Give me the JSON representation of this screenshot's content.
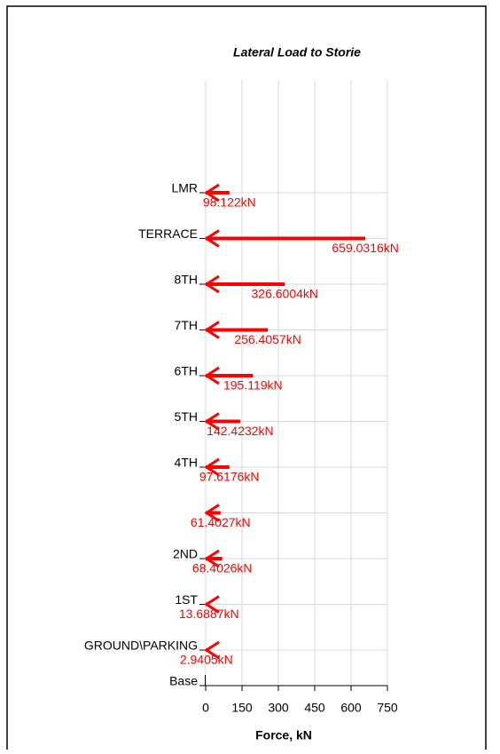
{
  "chart_data": {
    "type": "arrow",
    "title": "Lateral Load to Storie",
    "x_label": "Force, kN",
    "categories": [
      "LMR",
      "TERRACE",
      "8TH",
      "7TH",
      "6TH",
      "5TH",
      "4TH",
      null,
      "2ND",
      "1ST",
      "GROUND\\PARKING",
      "Base"
    ],
    "values": [
      98.122,
      659.0316,
      326.6004,
      256.4057,
      195.119,
      142.4232,
      97.6176,
      61.4027,
      68.4026,
      13.6887,
      2.9405,
      null
    ],
    "value_labels": [
      "98.122kN",
      "659.0316kN",
      "326.6004kN",
      "256.4057kN",
      "195.119kN",
      "142.4232kN",
      "97.6176kN",
      "61.4027kN",
      "68.4026kN",
      "13.6887kN",
      "2.9405kN",
      null
    ],
    "color": "#ff0000",
    "xlim": [
      0,
      750
    ],
    "xticks": [
      0,
      150,
      300,
      450,
      600,
      750
    ],
    "grid": true
  }
}
